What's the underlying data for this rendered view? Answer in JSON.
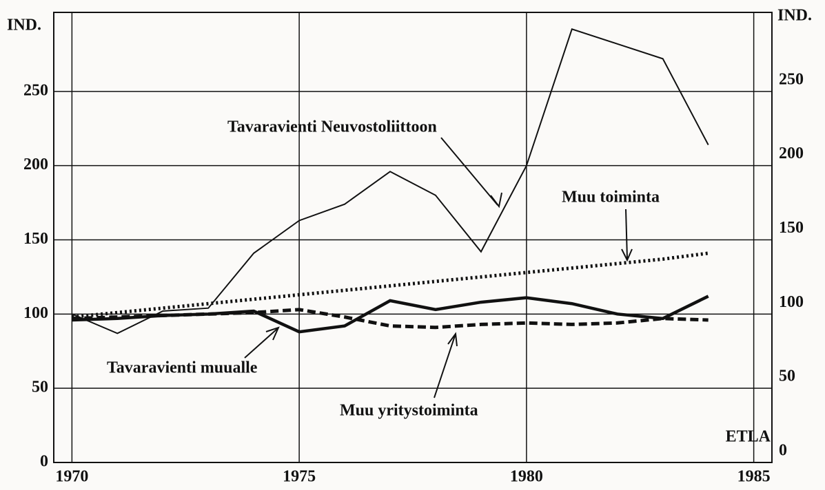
{
  "chart_data": {
    "type": "line",
    "x": [
      1970,
      1971,
      1972,
      1973,
      1974,
      1975,
      1976,
      1977,
      1978,
      1979,
      1980,
      1981,
      1982,
      1983,
      1984
    ],
    "series": [
      {
        "name": "Tavaravienti Neuvostoliittoon",
        "color": "#111111",
        "style": "thin",
        "values": [
          100,
          87,
          102,
          104,
          141,
          163,
          174,
          196,
          180,
          142,
          200,
          292,
          282,
          272,
          214
        ]
      },
      {
        "name": "Tavaravienti muualle",
        "color": "#111111",
        "style": "thick",
        "values": [
          96,
          97,
          99,
          100,
          102,
          88,
          92,
          109,
          103,
          108,
          111,
          107,
          100,
          97,
          112
        ]
      },
      {
        "name": "Muu toiminta",
        "color": "#111111",
        "style": "dashed",
        "values": [
          98,
          101,
          104,
          107,
          110,
          113,
          116,
          119,
          122,
          125,
          128,
          131,
          134,
          137,
          141
        ]
      },
      {
        "name": "Muu yritystoiminta",
        "color": "#111111",
        "style": "thickdash",
        "values": [
          97,
          98,
          99,
          100,
          101,
          103,
          98,
          92,
          91,
          93,
          94,
          93,
          94,
          97,
          96
        ]
      }
    ],
    "xlim": [
      1969.6,
      1985.4
    ],
    "xticks": [
      1970,
      1975,
      1980,
      1985
    ],
    "ylim": [
      0,
      300
    ],
    "yticks": [
      0,
      50,
      100,
      150,
      200,
      250
    ],
    "y2lim": [
      0,
      300
    ],
    "y2ticks": [
      0,
      50,
      100,
      150,
      200,
      250
    ],
    "ylabel": "IND.",
    "y2label": "IND.",
    "source": "ETLA",
    "grid": true
  }
}
